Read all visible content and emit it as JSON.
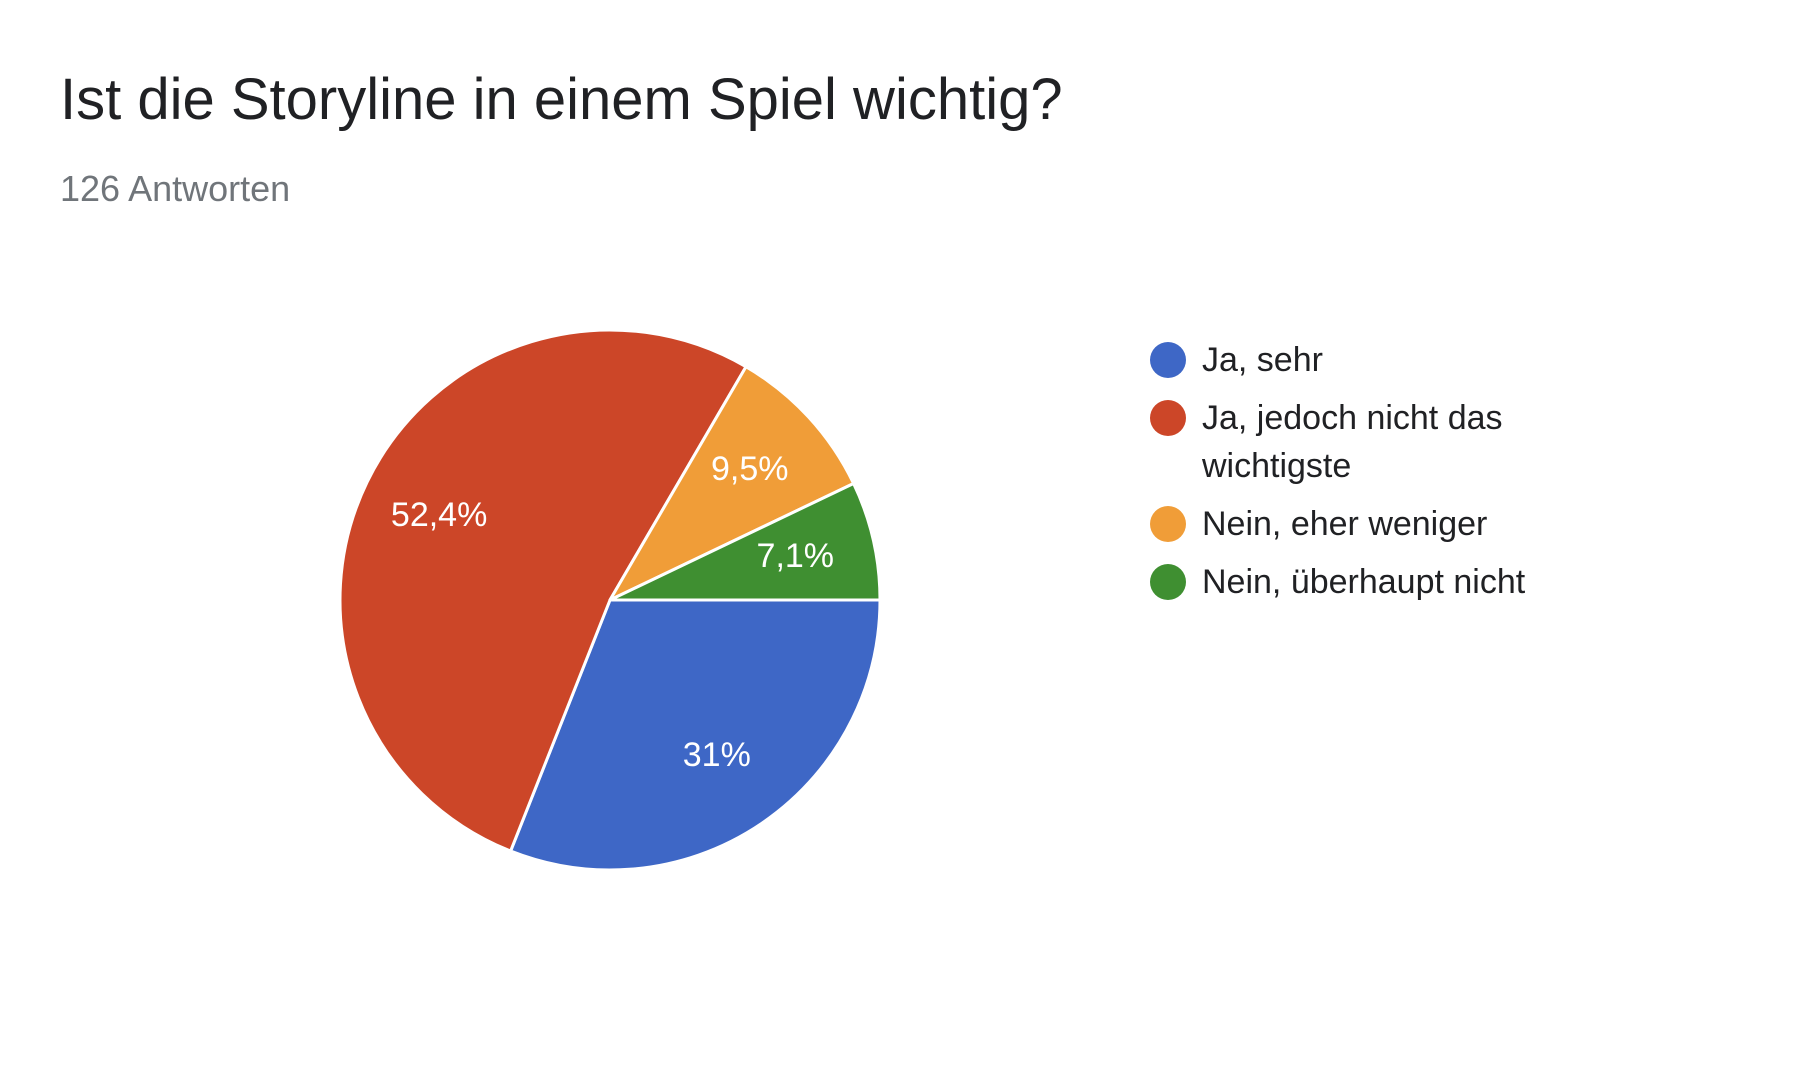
{
  "header": {
    "title": "Ist die Storyline in einem Spiel wichtig?",
    "response_count": "126 Antworten"
  },
  "chart_data": {
    "type": "pie",
    "title": "Ist die Storyline in einem Spiel wichtig?",
    "subtitle": "126 Antworten",
    "slices": [
      {
        "label": "Ja, sehr",
        "percent": 31.0,
        "percent_label": "31%",
        "color": "#3e67c6"
      },
      {
        "label": "Ja, jedoch nicht das wichtigste",
        "percent": 52.4,
        "percent_label": "52,4%",
        "color": "#cc4628"
      },
      {
        "label": "Nein, eher weniger",
        "percent": 9.5,
        "percent_label": "9,5%",
        "color": "#f09d38"
      },
      {
        "label": "Nein, überhaupt nicht",
        "percent": 7.1,
        "percent_label": "7,1%",
        "color": "#3f8f31"
      }
    ],
    "legend_position": "right"
  }
}
